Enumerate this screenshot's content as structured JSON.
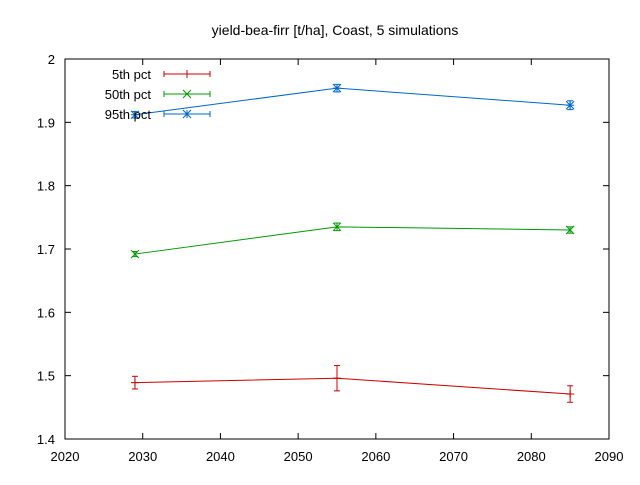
{
  "chart_data": {
    "type": "line",
    "title": "yield-bea-firr [t/ha], Coast, 5 simulations",
    "xlim": [
      2020,
      2090
    ],
    "ylim": [
      1.4,
      2.0
    ],
    "x_ticks": [
      2020,
      2030,
      2040,
      2050,
      2060,
      2070,
      2080,
      2090
    ],
    "y_ticks": [
      1.4,
      1.5,
      1.6,
      1.7,
      1.8,
      1.9,
      2.0
    ],
    "x_tick_labels": [
      "2020",
      "2030",
      "2040",
      "2050",
      "2060",
      "2070",
      "2080",
      "2090"
    ],
    "y_tick_labels": [
      "1.4",
      "1.5",
      "1.6",
      "1.7",
      "1.8",
      "1.9",
      "2"
    ],
    "grid": false,
    "legend_position": "top-left",
    "x": [
      2029,
      2055,
      2085
    ],
    "series": [
      {
        "name": "5th pct",
        "color": "#cc0000",
        "marker": "plus",
        "values": [
          1.489,
          1.496,
          1.471
        ],
        "errors": [
          0.01,
          0.02,
          0.013
        ]
      },
      {
        "name": "50th pct",
        "color": "#009900",
        "marker": "cross",
        "values": [
          1.692,
          1.735,
          1.73
        ],
        "errors": [
          0.004,
          0.006,
          0.005
        ]
      },
      {
        "name": "95th pct",
        "color": "#0066cc",
        "marker": "star",
        "values": [
          1.912,
          1.954,
          1.927
        ],
        "errors": [
          0.005,
          0.006,
          0.007
        ]
      }
    ]
  }
}
